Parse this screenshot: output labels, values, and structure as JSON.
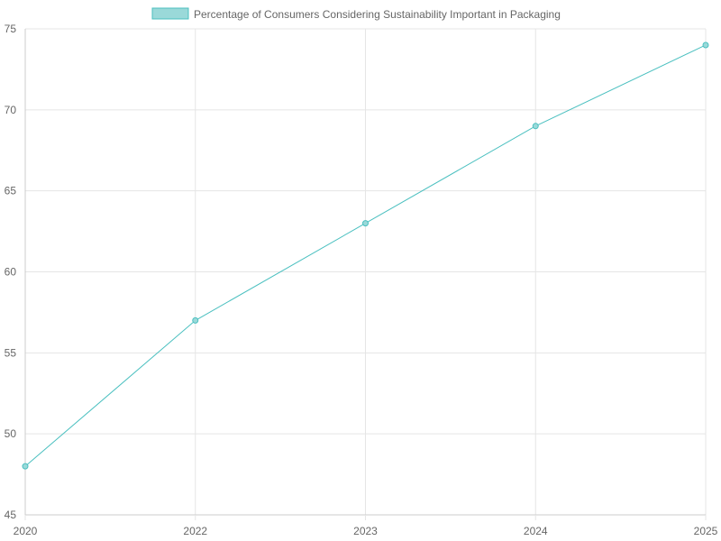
{
  "chart_data": {
    "type": "line",
    "title": "",
    "xlabel": "",
    "ylabel": "",
    "categories": [
      "2020",
      "2022",
      "2023",
      "2024",
      "2025"
    ],
    "series": [
      {
        "name": "Percentage of Consumers Considering Sustainability Important in Packaging",
        "values": [
          48,
          57,
          63,
          69,
          74
        ],
        "color": "#4bc0c0",
        "fill_color": "#9ad9d9"
      }
    ],
    "ylim": [
      45,
      75
    ],
    "y_ticks": [
      "45",
      "50",
      "55",
      "60",
      "65",
      "70",
      "75"
    ],
    "grid": true,
    "legend_position": "top"
  }
}
